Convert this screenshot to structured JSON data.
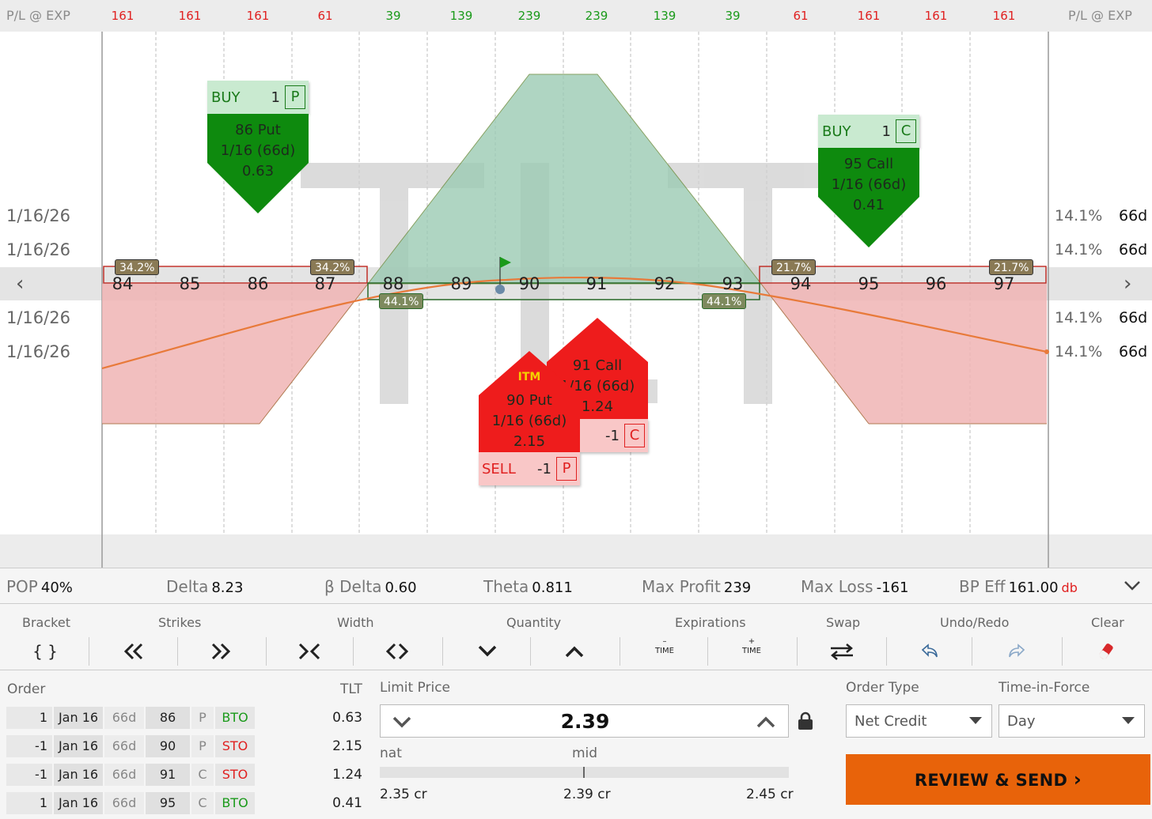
{
  "chart": {
    "pl_label": "P/L @ EXP",
    "pl_values": [
      "161",
      "161",
      "161",
      "61",
      "39",
      "139",
      "239",
      "239",
      "139",
      "39",
      "61",
      "161",
      "161",
      "161"
    ],
    "pl_kinds": [
      "loss",
      "loss",
      "loss",
      "loss",
      "profit",
      "profit",
      "profit",
      "profit",
      "profit",
      "profit",
      "loss",
      "loss",
      "loss",
      "loss"
    ],
    "strikes": [
      "84",
      "85",
      "86",
      "87",
      "88",
      "89",
      "90",
      "91",
      "92",
      "93",
      "94",
      "95",
      "96",
      "97"
    ],
    "dates": [
      "1/16/26",
      "1/16/26",
      "1/16/26",
      "1/16/26"
    ],
    "ivs": [
      "14.1%",
      "14.1%",
      "14.1%",
      "14.1%"
    ],
    "dtes": [
      "66d",
      "66d",
      "66d",
      "66d"
    ],
    "badges": {
      "b1": "34.2%",
      "b2": "34.2%",
      "b3": "44.1%",
      "b4": "44.1%",
      "b5": "21.7%",
      "b6": "21.7%"
    },
    "legs": {
      "buy_put": {
        "side": "BUY",
        "qty": "1",
        "type": "P",
        "name": "86 Put",
        "exp": "1/16 (66d)",
        "price": "0.63"
      },
      "buy_call": {
        "side": "BUY",
        "qty": "1",
        "type": "C",
        "name": "95 Call",
        "exp": "1/16 (66d)",
        "price": "0.41"
      },
      "sell_call": {
        "qty": "-1",
        "type": "C",
        "name": "91 Call",
        "exp": "1/16 (66d)",
        "price": "1.24"
      },
      "sell_put": {
        "itm": "ITM",
        "side": "SELL",
        "qty": "-1",
        "type": "P",
        "name": "90 Put",
        "exp": "1/16 (66d)",
        "price": "2.15"
      }
    },
    "colors": {
      "loss_fill": "#f0b4b4",
      "profit_fill": "#9ccbb4",
      "buy": "#0e8a0e",
      "sell": "#ee1c1c",
      "curve": "#e87a3a"
    }
  },
  "stats": {
    "pop_label": "POP",
    "pop": "40%",
    "delta_label": "Delta",
    "delta": "8.23",
    "bdelta_label": "β Delta",
    "bdelta": "0.60",
    "theta_label": "Theta",
    "theta": "0.811",
    "maxprofit_label": "Max Profit",
    "maxprofit": "239",
    "maxloss_label": "Max Loss",
    "maxloss": "-161",
    "bp_label": "BP Eff",
    "bp": "161.00",
    "bp_unit": "db"
  },
  "toolbar": {
    "bracket": "Bracket",
    "bracket_icon": "{ }",
    "strikes": "Strikes",
    "width": "Width",
    "quantity": "Quantity",
    "expirations": "Expirations",
    "time_minus": "TIME",
    "time_plus": "TIME",
    "swap": "Swap",
    "undo_redo": "Undo/Redo",
    "clear": "Clear"
  },
  "order": {
    "order_label": "Order",
    "tlt_label": "TLT",
    "rows": [
      {
        "qty": "1",
        "date": "Jan 16",
        "dte": "66d",
        "strike": "86",
        "pc": "P",
        "action": "BTO",
        "tlt": "0.63"
      },
      {
        "qty": "-1",
        "date": "Jan 16",
        "dte": "66d",
        "strike": "90",
        "pc": "P",
        "action": "STO",
        "tlt": "2.15"
      },
      {
        "qty": "-1",
        "date": "Jan 16",
        "dte": "66d",
        "strike": "91",
        "pc": "C",
        "action": "STO",
        "tlt": "1.24"
      },
      {
        "qty": "1",
        "date": "Jan 16",
        "dte": "66d",
        "strike": "95",
        "pc": "C",
        "action": "BTO",
        "tlt": "0.41"
      }
    ],
    "limit_label": "Limit Price",
    "limit_price": "2.39",
    "nat_label": "nat",
    "mid_label": "mid",
    "nat_price": "2.35 cr",
    "mid_price": "2.39 cr",
    "far_price": "2.45 cr",
    "order_type_label": "Order Type",
    "order_type": "Net Credit",
    "tif_label": "Time-in-Force",
    "tif": "Day",
    "review": "REVIEW & SEND"
  }
}
